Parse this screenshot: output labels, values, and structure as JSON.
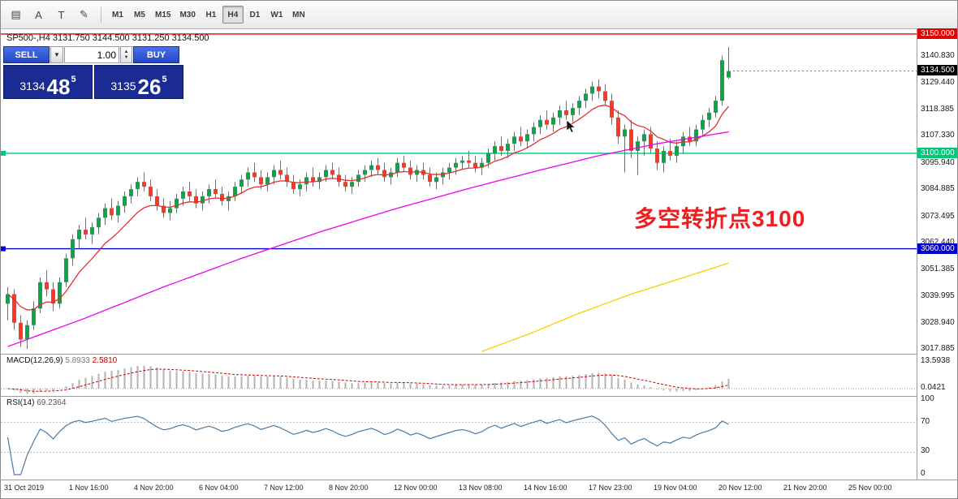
{
  "toolbar": {
    "icons": [
      {
        "name": "chart-list-icon",
        "glyph": "▤"
      },
      {
        "name": "cursor-icon",
        "glyph": "A"
      },
      {
        "name": "text-icon",
        "glyph": "T"
      },
      {
        "name": "draw-icon",
        "glyph": "✎"
      }
    ],
    "timeframes": [
      "M1",
      "M5",
      "M15",
      "M30",
      "H1",
      "H4",
      "D1",
      "W1",
      "MN"
    ],
    "active_timeframe": "H4"
  },
  "trade_panel": {
    "sell_label": "SELL",
    "buy_label": "BUY",
    "volume": "1.00",
    "bid": {
      "big3": "3134",
      "pips": "48",
      "frac": "5"
    },
    "ask": {
      "big3": "3135",
      "pips": "26",
      "frac": "5"
    }
  },
  "chart": {
    "header": "SP500-,H4  3131.750 3144.500 3131.250 3134.500",
    "annotation": "多空转折点3100",
    "current_price_tag": "3134.500",
    "levels": [
      {
        "label": "3150.000",
        "price": 3150.0,
        "color": "#e00000",
        "handle": false
      },
      {
        "label": "3100.000",
        "price": 3100.0,
        "color": "#00c878",
        "handle": true
      },
      {
        "label": "3060.000",
        "price": 3060.0,
        "color": "#0000cc",
        "handle": true
      }
    ],
    "axis_labels": [
      3140.83,
      3129.44,
      3118.385,
      3107.33,
      3095.94,
      3084.885,
      3073.495,
      3062.44,
      3051.385,
      3039.995,
      3028.94,
      3017.885
    ]
  },
  "macd": {
    "label": "MACD(12,26,9)",
    "value_main": "5.8933",
    "value_signal": "2.5810",
    "axis_top": "13.5938",
    "axis_zero": "0.0421"
  },
  "rsi": {
    "label": "RSI(14)",
    "value": "69.2364",
    "axis": [
      "100",
      "70",
      "30",
      "0"
    ]
  },
  "time_axis": [
    "31 Oct 2019",
    "1 Nov 16:00",
    "4 Nov 20:00",
    "6 Nov 04:00",
    "7 Nov 12:00",
    "8 Nov 20:00",
    "12 Nov 00:00",
    "13 Nov 08:00",
    "14 Nov 16:00",
    "17 Nov 23:00",
    "19 Nov 04:00",
    "20 Nov 12:00",
    "21 Nov 20:00",
    "25 Nov 00:00"
  ],
  "chart_data": {
    "type": "candlestick",
    "symbol": "SP500-",
    "timeframe": "H4",
    "current_ohlc": {
      "open": 3131.75,
      "high": 3144.5,
      "low": 3131.25,
      "close": 3134.5
    },
    "y_range": [
      3016,
      3152
    ],
    "candle_colors": {
      "up": "#0fa34a",
      "down": "#fb3927"
    },
    "candles": [
      [
        3037,
        3044,
        3030,
        3041
      ],
      [
        3041,
        3043,
        3026,
        3029
      ],
      [
        3029,
        3032,
        3019,
        3022
      ],
      [
        3022,
        3030,
        3018,
        3028
      ],
      [
        3028,
        3038,
        3026,
        3035
      ],
      [
        3035,
        3048,
        3033,
        3046
      ],
      [
        3046,
        3051,
        3040,
        3043
      ],
      [
        3043,
        3046,
        3034,
        3037
      ],
      [
        3037,
        3048,
        3035,
        3046
      ],
      [
        3046,
        3058,
        3044,
        3056
      ],
      [
        3056,
        3066,
        3053,
        3064
      ],
      [
        3064,
        3070,
        3060,
        3068
      ],
      [
        3068,
        3073,
        3064,
        3066
      ],
      [
        3066,
        3071,
        3062,
        3069
      ],
      [
        3069,
        3075,
        3066,
        3073
      ],
      [
        3073,
        3079,
        3070,
        3077
      ],
      [
        3077,
        3081,
        3072,
        3074
      ],
      [
        3074,
        3080,
        3071,
        3078
      ],
      [
        3078,
        3084,
        3075,
        3082
      ],
      [
        3082,
        3087,
        3079,
        3085
      ],
      [
        3085,
        3090,
        3082,
        3088
      ],
      [
        3088,
        3092,
        3084,
        3086
      ],
      [
        3086,
        3089,
        3080,
        3082
      ],
      [
        3082,
        3085,
        3076,
        3078
      ],
      [
        3078,
        3081,
        3073,
        3075
      ],
      [
        3075,
        3080,
        3072,
        3077
      ],
      [
        3077,
        3083,
        3075,
        3081
      ],
      [
        3081,
        3086,
        3078,
        3084
      ],
      [
        3084,
        3088,
        3080,
        3082
      ],
      [
        3082,
        3085,
        3077,
        3079
      ],
      [
        3079,
        3084,
        3076,
        3082
      ],
      [
        3082,
        3087,
        3079,
        3085
      ],
      [
        3085,
        3089,
        3081,
        3083
      ],
      [
        3083,
        3086,
        3078,
        3080
      ],
      [
        3080,
        3084,
        3076,
        3082
      ],
      [
        3082,
        3088,
        3080,
        3086
      ],
      [
        3086,
        3091,
        3083,
        3089
      ],
      [
        3089,
        3094,
        3086,
        3092
      ],
      [
        3092,
        3096,
        3088,
        3090
      ],
      [
        3090,
        3093,
        3085,
        3087
      ],
      [
        3087,
        3092,
        3084,
        3090
      ],
      [
        3090,
        3095,
        3087,
        3093
      ],
      [
        3093,
        3097,
        3089,
        3091
      ],
      [
        3091,
        3094,
        3086,
        3088
      ],
      [
        3088,
        3091,
        3083,
        3085
      ],
      [
        3085,
        3089,
        3082,
        3087
      ],
      [
        3087,
        3092,
        3084,
        3090
      ],
      [
        3090,
        3094,
        3086,
        3088
      ],
      [
        3088,
        3092,
        3085,
        3090
      ],
      [
        3090,
        3095,
        3088,
        3093
      ],
      [
        3093,
        3096,
        3089,
        3091
      ],
      [
        3091,
        3094,
        3086,
        3088
      ],
      [
        3088,
        3091,
        3084,
        3086
      ],
      [
        3086,
        3090,
        3083,
        3088
      ],
      [
        3088,
        3093,
        3086,
        3091
      ],
      [
        3091,
        3095,
        3088,
        3093
      ],
      [
        3093,
        3097,
        3090,
        3095
      ],
      [
        3095,
        3098,
        3091,
        3093
      ],
      [
        3093,
        3096,
        3088,
        3090
      ],
      [
        3090,
        3094,
        3087,
        3092
      ],
      [
        3092,
        3098,
        3090,
        3096
      ],
      [
        3096,
        3099,
        3092,
        3094
      ],
      [
        3094,
        3097,
        3089,
        3091
      ],
      [
        3091,
        3095,
        3088,
        3093
      ],
      [
        3093,
        3096,
        3089,
        3091
      ],
      [
        3091,
        3094,
        3086,
        3088
      ],
      [
        3088,
        3092,
        3085,
        3090
      ],
      [
        3090,
        3094,
        3087,
        3092
      ],
      [
        3092,
        3096,
        3089,
        3094
      ],
      [
        3094,
        3098,
        3091,
        3096
      ],
      [
        3096,
        3099,
        3093,
        3097
      ],
      [
        3097,
        3101,
        3094,
        3096
      ],
      [
        3096,
        3099,
        3092,
        3094
      ],
      [
        3094,
        3098,
        3091,
        3096
      ],
      [
        3096,
        3102,
        3094,
        3100
      ],
      [
        3100,
        3105,
        3097,
        3103
      ],
      [
        3103,
        3107,
        3099,
        3101
      ],
      [
        3101,
        3106,
        3098,
        3104
      ],
      [
        3104,
        3109,
        3101,
        3107
      ],
      [
        3107,
        3111,
        3103,
        3105
      ],
      [
        3105,
        3110,
        3102,
        3108
      ],
      [
        3108,
        3113,
        3105,
        3111
      ],
      [
        3111,
        3116,
        3108,
        3114
      ],
      [
        3114,
        3118,
        3110,
        3112
      ],
      [
        3112,
        3117,
        3109,
        3115
      ],
      [
        3115,
        3120,
        3112,
        3118
      ],
      [
        3118,
        3122,
        3114,
        3116
      ],
      [
        3116,
        3121,
        3113,
        3119
      ],
      [
        3119,
        3124,
        3116,
        3122
      ],
      [
        3122,
        3127,
        3119,
        3125
      ],
      [
        3125,
        3130,
        3122,
        3128
      ],
      [
        3128,
        3131,
        3123,
        3126
      ],
      [
        3126,
        3129,
        3120,
        3122
      ],
      [
        3122,
        3125,
        3112,
        3115
      ],
      [
        3115,
        3118,
        3104,
        3107
      ],
      [
        3107,
        3112,
        3092,
        3110
      ],
      [
        3110,
        3114,
        3098,
        3101
      ],
      [
        3101,
        3107,
        3091,
        3105
      ],
      [
        3105,
        3110,
        3099,
        3108
      ],
      [
        3108,
        3111,
        3100,
        3102
      ],
      [
        3102,
        3105,
        3093,
        3096
      ],
      [
        3096,
        3103,
        3092,
        3101
      ],
      [
        3101,
        3106,
        3097,
        3099
      ],
      [
        3099,
        3105,
        3096,
        3103
      ],
      [
        3103,
        3109,
        3100,
        3107
      ],
      [
        3107,
        3111,
        3103,
        3105
      ],
      [
        3105,
        3112,
        3103,
        3110
      ],
      [
        3110,
        3116,
        3107,
        3114
      ],
      [
        3114,
        3119,
        3111,
        3117
      ],
      [
        3117,
        3124,
        3115,
        3122
      ],
      [
        3122,
        3141,
        3120,
        3139
      ],
      [
        3131.8,
        3144.5,
        3131.2,
        3134.5
      ]
    ],
    "overlays": [
      {
        "name": "ma-fast-red",
        "color": "#e03030",
        "type": "ema",
        "period": 10
      },
      {
        "name": "ma-mid-magenta",
        "color": "#f000f0",
        "type": "waypoints",
        "points": [
          [
            0,
            3019
          ],
          [
            12,
            3031
          ],
          [
            24,
            3044
          ],
          [
            36,
            3056
          ],
          [
            48,
            3067
          ],
          [
            60,
            3077
          ],
          [
            72,
            3086
          ],
          [
            82,
            3093
          ],
          [
            91,
            3099
          ],
          [
            100,
            3104
          ],
          [
            111,
            3109
          ]
        ]
      },
      {
        "name": "ma-slow-yellow",
        "color": "#ffcc00",
        "type": "waypoints",
        "points": [
          [
            73,
            3017
          ],
          [
            80,
            3024
          ],
          [
            88,
            3033
          ],
          [
            96,
            3041
          ],
          [
            103,
            3047
          ],
          [
            111,
            3054
          ]
        ]
      }
    ]
  }
}
